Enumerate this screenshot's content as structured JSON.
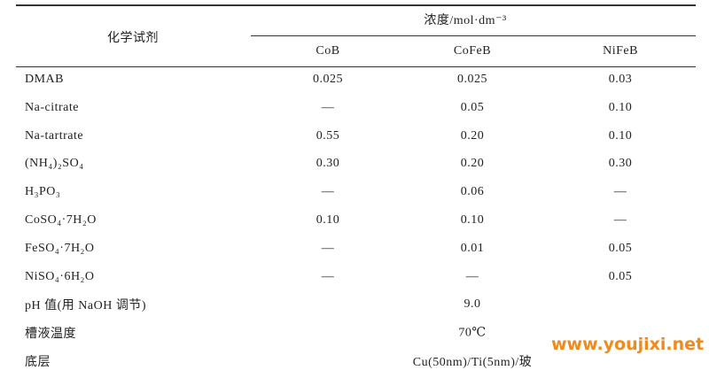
{
  "header": {
    "corner": "化学试剂",
    "group": "浓度/mol·dm⁻³",
    "columns": [
      "CoB",
      "CoFeB",
      "NiFeB"
    ]
  },
  "table": {
    "rows": [
      [
        "DMAB",
        "0.025",
        "0.025",
        "0.03"
      ],
      [
        "Na-citrate",
        "—",
        "0.05",
        "0.10"
      ],
      [
        "Na-tartrate",
        "0.55",
        "0.20",
        "0.10"
      ],
      [
        "(NH₄)₂SO₄",
        "0.30",
        "0.20",
        "0.30"
      ],
      [
        "H₃PO₃",
        "—",
        "0.06",
        "—"
      ],
      [
        "CoSO₄·7H₂O",
        "0.10",
        "0.10",
        "—"
      ],
      [
        "FeSO₄·7H₂O",
        "—",
        "0.01",
        "0.05"
      ],
      [
        "NiSO₄·6H₂O",
        "—",
        "—",
        "0.05"
      ],
      [
        "pH 值(用 NaOH 调节)",
        "9.0"
      ],
      [
        "槽液温度",
        "70℃"
      ],
      [
        "底层",
        "Cu(50nm)/Ti(5nm)/玻"
      ]
    ]
  },
  "watermark": "www.youjixi.net"
}
